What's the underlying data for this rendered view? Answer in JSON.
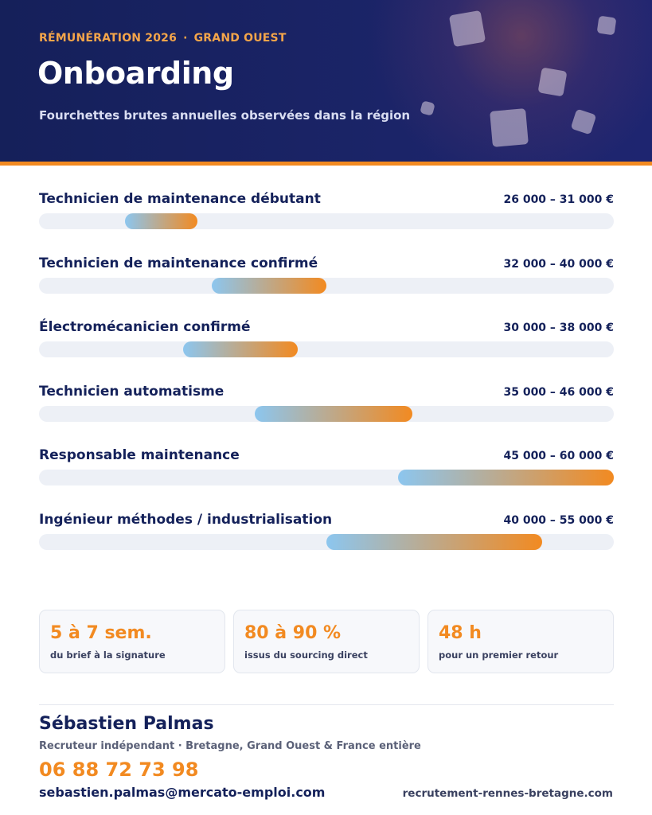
{
  "header": {
    "eyebrow_left": "RÉMUNÉRATION 2026",
    "eyebrow_separator": "·",
    "eyebrow_right": "GRAND OUEST",
    "title": "Onboarding",
    "subtitle": "Fourchettes brutes annuelles observées dans la région"
  },
  "colors": {
    "navy": "#14215a",
    "accent_orange": "#f28a21",
    "bar_start_blue": "#8cc6ef",
    "track_gray": "#edf0f6"
  },
  "salaries": {
    "scale_min": 20000,
    "scale_max": 60000,
    "currency": "€",
    "items": [
      {
        "label": "Technicien de maintenance débutant",
        "range": "26 000 – 31 000 €",
        "min": 26000,
        "max": 31000
      },
      {
        "label": "Technicien de maintenance confirmé",
        "range": "32 000 – 40 000 €",
        "min": 32000,
        "max": 40000
      },
      {
        "label": "Électromécanicien confirmé",
        "range": "30 000 – 38 000 €",
        "min": 30000,
        "max": 38000
      },
      {
        "label": "Technicien automatisme",
        "range": "35 000 – 46 000 €",
        "min": 35000,
        "max": 46000
      },
      {
        "label": "Responsable maintenance",
        "range": "45 000 – 60 000 €",
        "min": 45000,
        "max": 60000
      },
      {
        "label": "Ingénieur méthodes / industrialisation",
        "range": "40 000 – 55 000 €",
        "min": 40000,
        "max": 55000
      }
    ]
  },
  "stats": [
    {
      "value": "5 à 7 sem.",
      "label": "du brief à la signature"
    },
    {
      "value": "80 à 90 %",
      "label": "issus du sourcing direct"
    },
    {
      "value": "48 h",
      "label": "pour un premier retour"
    }
  ],
  "contact": {
    "name": "Sébastien Palmas",
    "role": "Recruteur indépendant · Bretagne, Grand Ouest & France entière",
    "phone": "06 88 72 73 98",
    "email": "sebastien.palmas@mercato-emploi.com",
    "website": "recrutement-rennes-bretagne.com"
  }
}
